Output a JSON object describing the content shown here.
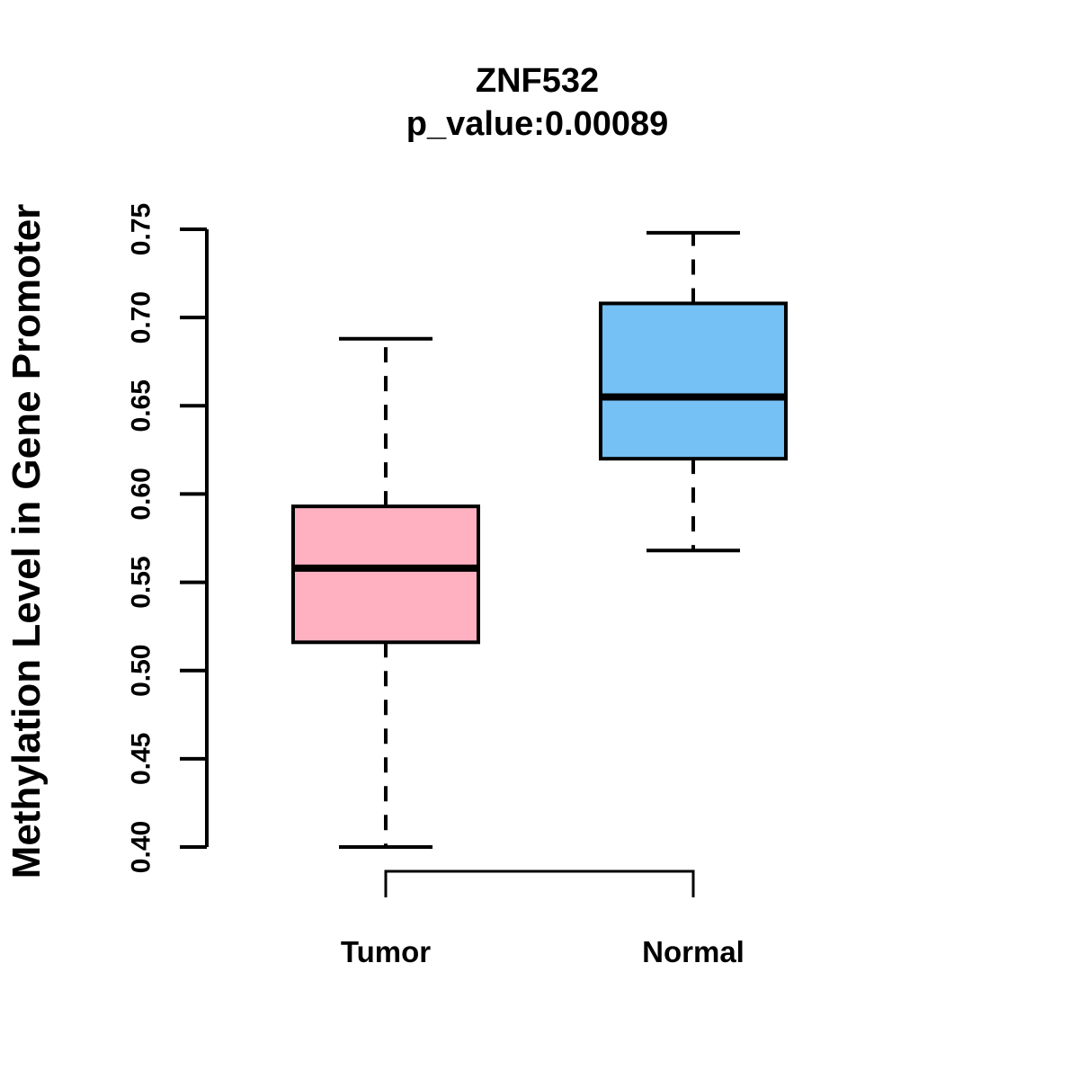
{
  "chart_data": {
    "type": "boxplot",
    "title": "ZNF532",
    "subtitle": "p_value:0.00089",
    "ylabel": "Methylation Level in Gene Promoter",
    "xlabel": "",
    "ylim": [
      0.4,
      0.75
    ],
    "yticks": [
      0.4,
      0.45,
      0.5,
      0.55,
      0.6,
      0.65,
      0.7,
      0.75
    ],
    "ytick_labels": [
      "0.40",
      "0.45",
      "0.50",
      "0.55",
      "0.60",
      "0.65",
      "0.70",
      "0.75"
    ],
    "grid": false,
    "legend": "none",
    "categories": [
      "Tumor",
      "Normal"
    ],
    "series": [
      {
        "name": "Tumor",
        "fill_color": "#FFB1C1",
        "whisker_low": 0.4,
        "q1": 0.516,
        "median": 0.558,
        "q3": 0.593,
        "whisker_high": 0.688
      },
      {
        "name": "Normal",
        "fill_color": "#75C0F5",
        "whisker_low": 0.568,
        "q1": 0.62,
        "median": 0.655,
        "q3": 0.708,
        "whisker_high": 0.748
      }
    ],
    "stroke_color": "#000000",
    "background_color": "#FFFFFF"
  }
}
